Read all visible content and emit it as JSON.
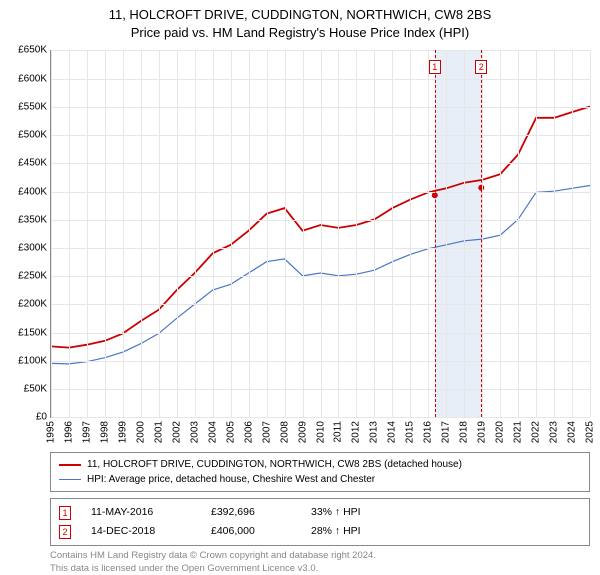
{
  "title_line1": "11, HOLCROFT DRIVE, CUDDINGTON, NORTHWICH, CW8 2BS",
  "title_line2": "Price paid vs. HM Land Registry's House Price Index (HPI)",
  "chart": {
    "type": "line",
    "background_color": "#ffffff",
    "grid_color": "#e6e6e6",
    "axis_color": "#888888",
    "label_fontsize": 10,
    "title_fontsize": 13,
    "x_start_year": 1995,
    "x_end_year": 2025,
    "x_tick_step_years": 1,
    "ylim": [
      0,
      650000
    ],
    "ytick_step": 50000,
    "ytick_prefix": "£",
    "ytick_suffix": "K",
    "highlight_band": {
      "start_year": 2016.36,
      "end_year": 2018.95,
      "color": "#e8eef7"
    },
    "vlines": [
      {
        "year": 2016.36,
        "label": "1",
        "color": "#cc0000"
      },
      {
        "year": 2018.95,
        "label": "2",
        "color": "#cc0000"
      }
    ],
    "series": [
      {
        "name": "property_price",
        "label": "11, HOLCROFT DRIVE, CUDDINGTON, NORTHWICH, CW8 2BS (detached house)",
        "color": "#cc0000",
        "line_width": 1.8,
        "points_yearly": [
          125000,
          123000,
          128000,
          135000,
          148000,
          170000,
          190000,
          225000,
          255000,
          290000,
          305000,
          330000,
          360000,
          370000,
          330000,
          340000,
          335000,
          340000,
          350000,
          370000,
          385000,
          398000,
          405000,
          415000,
          420000,
          430000,
          465000,
          530000,
          530000,
          540000,
          550000
        ],
        "markers": [
          {
            "year": 2016.36,
            "value": 392696,
            "color": "#cc0000",
            "radius": 3
          },
          {
            "year": 2018.95,
            "value": 406000,
            "color": "#cc0000",
            "radius": 3
          }
        ]
      },
      {
        "name": "hpi_avg",
        "label": "HPI: Average price, detached house, Cheshire West and Chester",
        "color": "#4a76c7",
        "line_width": 1.2,
        "points_yearly": [
          95000,
          94000,
          98000,
          105000,
          115000,
          130000,
          148000,
          175000,
          200000,
          225000,
          235000,
          255000,
          275000,
          280000,
          250000,
          255000,
          250000,
          253000,
          260000,
          275000,
          288000,
          298000,
          305000,
          312000,
          315000,
          322000,
          350000,
          398000,
          400000,
          405000,
          410000
        ]
      }
    ]
  },
  "legend": {
    "border_color": "#888888",
    "items": [
      {
        "color": "#cc0000",
        "width": 2,
        "bind": "chart.series.0.label"
      },
      {
        "color": "#4a76c7",
        "width": 1.2,
        "bind": "chart.series.1.label"
      }
    ]
  },
  "sales": [
    {
      "marker": "1",
      "date": "11-MAY-2016",
      "price": "£392,696",
      "pct": "33% ↑ HPI"
    },
    {
      "marker": "2",
      "date": "14-DEC-2018",
      "price": "£406,000",
      "pct": "28% ↑ HPI"
    }
  ],
  "footer_line1": "Contains HM Land Registry data © Crown copyright and database right 2024.",
  "footer_line2": "This data is licensed under the Open Government Licence v3.0."
}
